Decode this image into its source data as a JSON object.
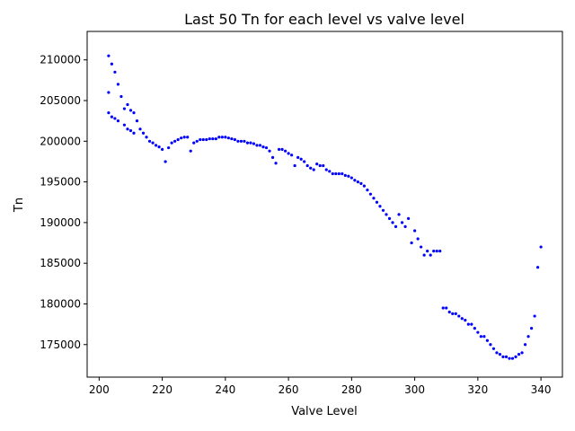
{
  "chart_data": {
    "type": "scatter",
    "title": "Last 50 Tn for each level vs valve level",
    "xlabel": "Valve Level",
    "ylabel": "Tn",
    "xlim": [
      196.2,
      346.8
    ],
    "ylim": [
      171000,
      213500
    ],
    "xticks": [
      200,
      220,
      240,
      260,
      280,
      300,
      320,
      340
    ],
    "xtick_labels": [
      "200",
      "220",
      "240",
      "260",
      "280",
      "300",
      "320",
      "340"
    ],
    "yticks": [
      175000,
      180000,
      185000,
      190000,
      195000,
      200000,
      205000,
      210000
    ],
    "ytick_labels": [
      "175000",
      "180000",
      "185000",
      "190000",
      "195000",
      "200000",
      "205000",
      "210000"
    ],
    "grid": false,
    "marker_color": "#0000ff",
    "series": [
      {
        "values_note": "",
        "x": [
          203,
          203,
          203,
          204,
          204,
          205,
          205,
          206,
          206,
          207,
          208,
          208,
          209,
          209,
          210,
          210,
          211,
          211,
          212,
          213,
          214,
          215,
          216,
          217,
          218,
          219,
          220,
          221,
          222,
          223,
          224,
          225,
          226,
          227,
          228,
          229,
          230,
          231,
          232,
          233,
          234,
          235,
          236,
          237,
          238,
          239,
          240,
          241,
          242,
          243,
          244,
          245,
          246,
          247,
          248,
          249,
          250,
          251,
          252,
          253,
          254,
          255,
          256,
          257,
          258,
          259,
          260,
          261,
          262,
          263,
          264,
          265,
          266,
          267,
          268,
          269,
          270,
          271,
          272,
          273,
          274,
          275,
          276,
          277,
          278,
          279,
          280,
          281,
          282,
          283,
          284,
          285,
          286,
          287,
          288,
          289,
          290,
          291,
          292,
          293,
          294,
          295,
          296,
          297,
          298,
          299,
          300,
          301,
          302,
          303,
          304,
          305,
          306,
          307,
          308,
          309,
          310,
          311,
          312,
          313,
          314,
          315,
          316,
          317,
          318,
          319,
          320,
          321,
          322,
          323,
          324,
          325,
          326,
          327,
          328,
          329,
          330,
          331,
          332,
          333,
          334,
          335,
          336,
          337,
          338,
          339,
          340
        ],
        "y": [
          210500,
          206000,
          203500,
          209500,
          203000,
          208500,
          202800,
          207000,
          202500,
          205500,
          204000,
          202000,
          204500,
          201500,
          203800,
          201300,
          203500,
          201000,
          202500,
          201500,
          201000,
          200500,
          200000,
          199800,
          199500,
          199300,
          199000,
          197500,
          199200,
          199800,
          200000,
          200200,
          200400,
          200500,
          200500,
          198800,
          199800,
          200000,
          200200,
          200200,
          200200,
          200300,
          200300,
          200300,
          200500,
          200500,
          200500,
          200400,
          200300,
          200200,
          200000,
          200000,
          200000,
          199800,
          199800,
          199700,
          199500,
          199500,
          199300,
          199200,
          198800,
          198000,
          197300,
          199000,
          199000,
          198800,
          198500,
          198300,
          197000,
          198000,
          197800,
          197500,
          197000,
          196700,
          196500,
          197200,
          197000,
          197000,
          196500,
          196300,
          196000,
          196000,
          196000,
          196000,
          195800,
          195700,
          195500,
          195200,
          195000,
          194800,
          194500,
          194000,
          193500,
          193000,
          192500,
          192000,
          191500,
          191000,
          190500,
          190000,
          189500,
          191000,
          190000,
          189500,
          190500,
          187500,
          189000,
          188000,
          187000,
          186000,
          186500,
          186000,
          186500,
          186500,
          186500,
          179500,
          179500,
          179000,
          178800,
          178800,
          178500,
          178200,
          178000,
          177500,
          177500,
          177000,
          176500,
          176000,
          176000,
          175500,
          175000,
          174500,
          174000,
          173800,
          173500,
          173500,
          173300,
          173300,
          173500,
          173800,
          174000,
          175000,
          176000,
          177000,
          178500,
          184500,
          187000
        ]
      }
    ]
  }
}
